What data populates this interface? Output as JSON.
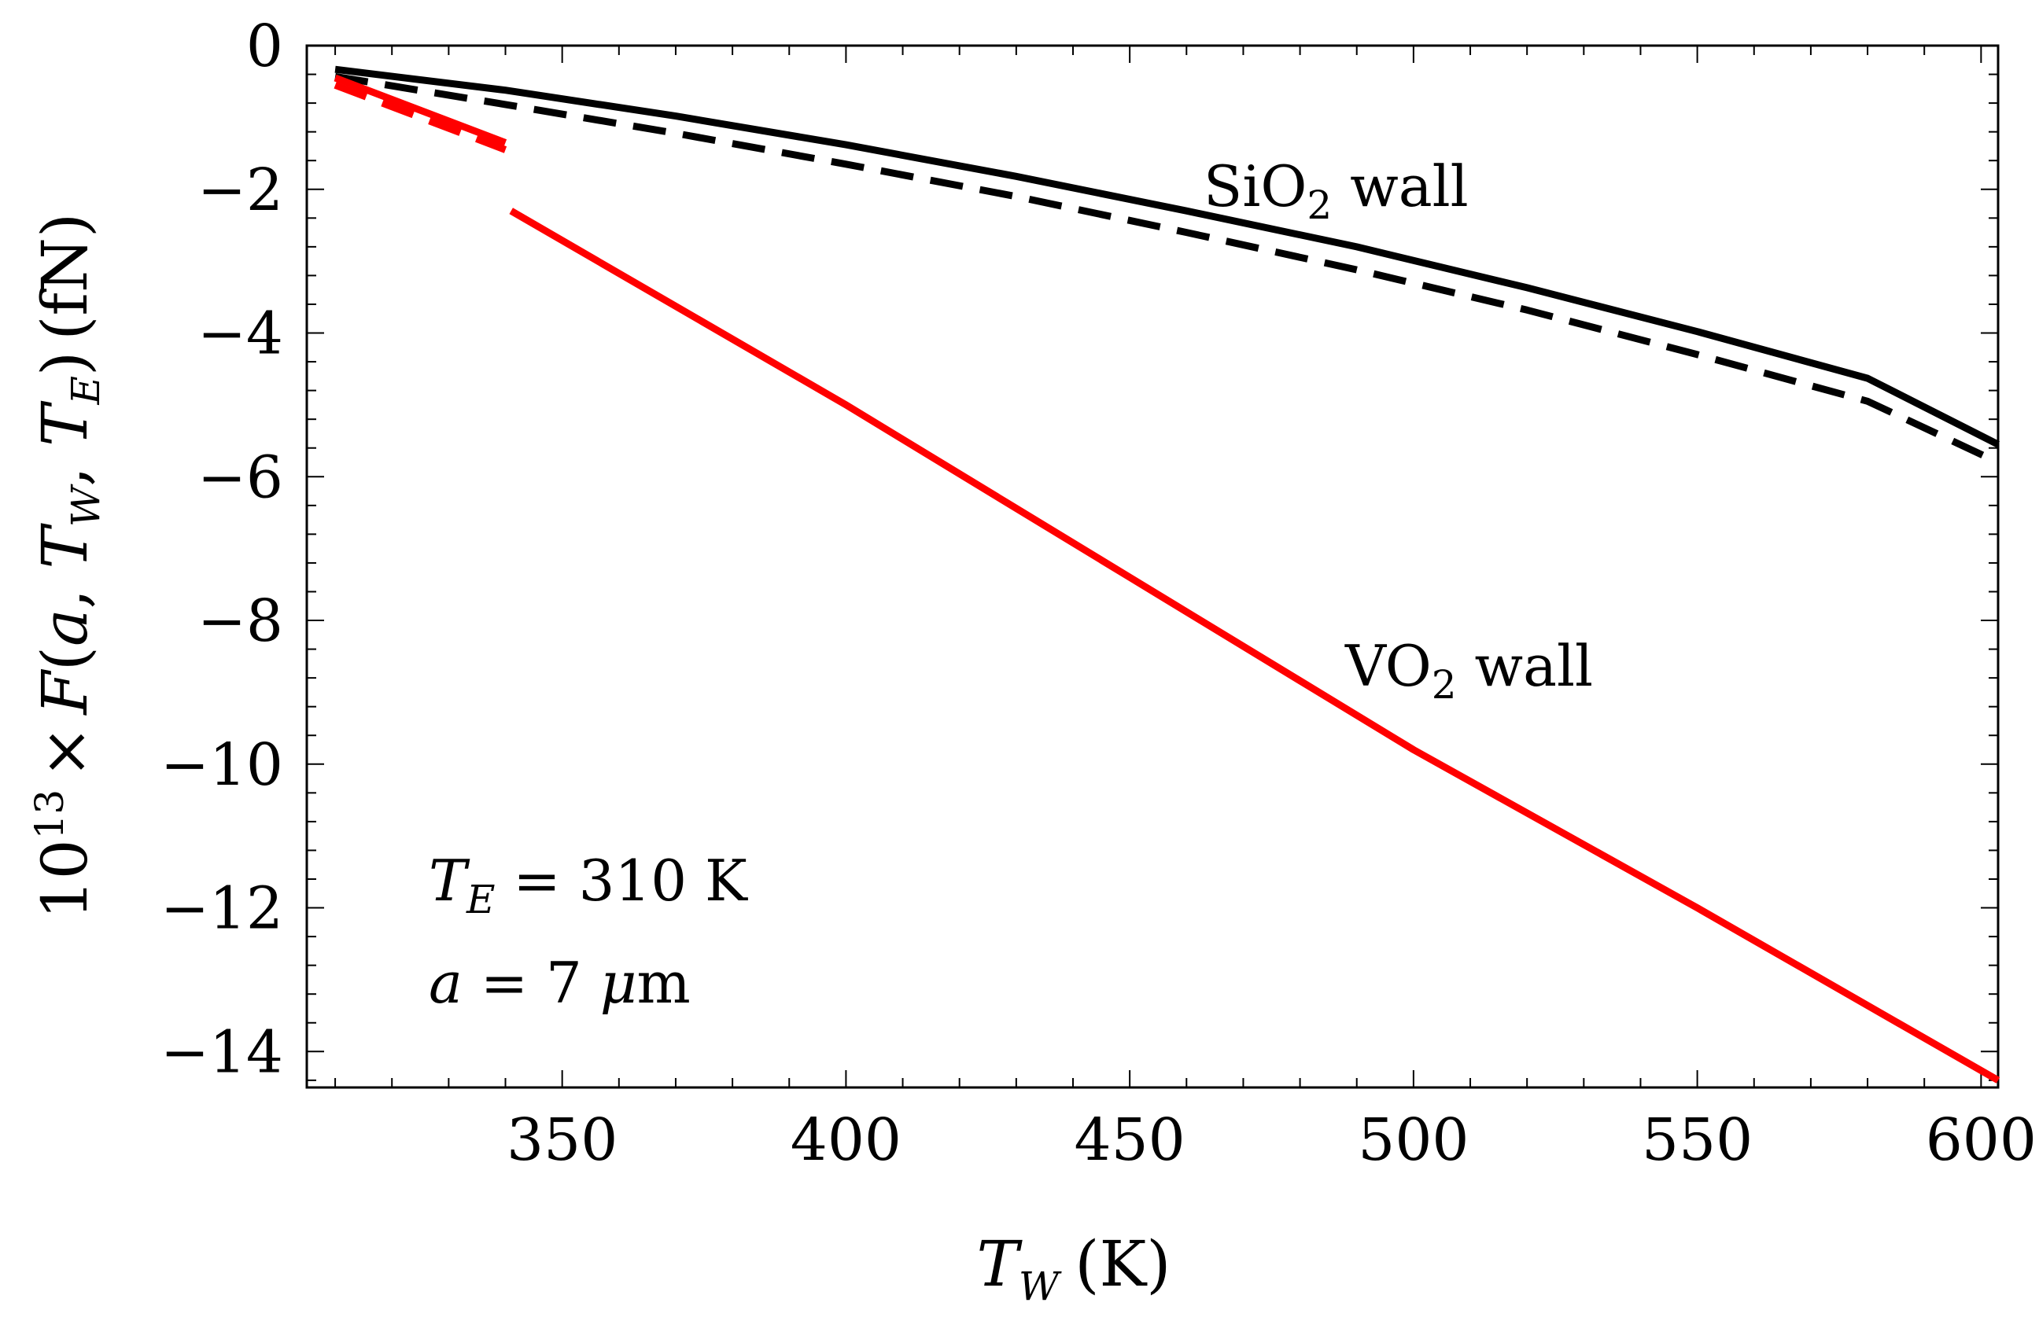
{
  "chart_data": {
    "type": "line",
    "title": "",
    "xlabel": "T_W (K)",
    "xlabel_parts": {
      "var": "T",
      "sub": "W",
      "unit": "(K)"
    },
    "ylabel": "10^13 × F(a, T_W, T_E) (fN)",
    "ylabel_parts": {
      "base": "10",
      "exp": "13",
      "times": "×",
      "func": "F",
      "open": "(",
      "a": "a",
      "sep1": ", ",
      "tw": "T",
      "tw_sub": "W",
      "sep2": ", ",
      "te": "T",
      "te_sub": "E",
      "close": ")",
      "unit": "(fN)"
    },
    "xlim": [
      305,
      603
    ],
    "ylim": [
      -14.5,
      0
    ],
    "x_ticks": [
      350,
      400,
      450,
      500,
      550,
      600
    ],
    "x_tick_labels": [
      "350",
      "400",
      "450",
      "500",
      "550",
      "600"
    ],
    "x_minor_step": 10,
    "y_ticks": [
      0,
      -2,
      -4,
      -6,
      -8,
      -10,
      -12,
      -14
    ],
    "y_tick_labels": [
      "0",
      "−2",
      "−4",
      "−6",
      "−8",
      "−10",
      "−12",
      "−14"
    ],
    "y_minor_step": 0.4,
    "grid": false,
    "series": [
      {
        "name": "SiO2 wall (solid)",
        "color": "#000000",
        "dash": "solid",
        "x": [
          310,
          340,
          370,
          400,
          430,
          460,
          490,
          520,
          550,
          580,
          603
        ],
        "y": [
          -0.33,
          -0.62,
          -0.98,
          -1.38,
          -1.82,
          -2.3,
          -2.8,
          -3.37,
          -3.98,
          -4.63,
          -5.55
        ]
      },
      {
        "name": "SiO2 wall (dashed)",
        "color": "#000000",
        "dash": "dashed",
        "x": [
          310,
          340,
          370,
          400,
          430,
          460,
          490,
          520,
          550,
          580,
          603
        ],
        "y": [
          -0.43,
          -0.82,
          -1.22,
          -1.65,
          -2.1,
          -2.6,
          -3.12,
          -3.68,
          -4.3,
          -4.95,
          -5.8
        ]
      },
      {
        "name": "VO2 wall (solid, low T)",
        "color": "#ff0000",
        "dash": "solid",
        "x": [
          310,
          325,
          340
        ],
        "y": [
          -0.45,
          -0.9,
          -1.35
        ]
      },
      {
        "name": "VO2 wall (dashed, low T)",
        "color": "#ff0000",
        "dash": "dashed",
        "x": [
          310,
          325,
          340
        ],
        "y": [
          -0.55,
          -1.0,
          -1.45
        ]
      },
      {
        "name": "VO2 wall (solid, high T)",
        "color": "#ff0000",
        "dash": "solid",
        "x": [
          341,
          400,
          450,
          500,
          550,
          603
        ],
        "y": [
          -2.3,
          -5.0,
          -7.4,
          -9.8,
          -12.0,
          -14.4
        ]
      }
    ],
    "annotations": {
      "sio2_label": {
        "pre": "SiO",
        "sub": "2",
        "post": " wall"
      },
      "vo2_label": {
        "pre": "VO",
        "sub": "2",
        "post": " wall"
      },
      "te_label": {
        "var": "T",
        "sub": "E",
        "rest": " = 310 K"
      },
      "a_label": {
        "var": "a",
        "rest": " = 7 ",
        "mu": "μ",
        "unit": "m"
      }
    }
  }
}
